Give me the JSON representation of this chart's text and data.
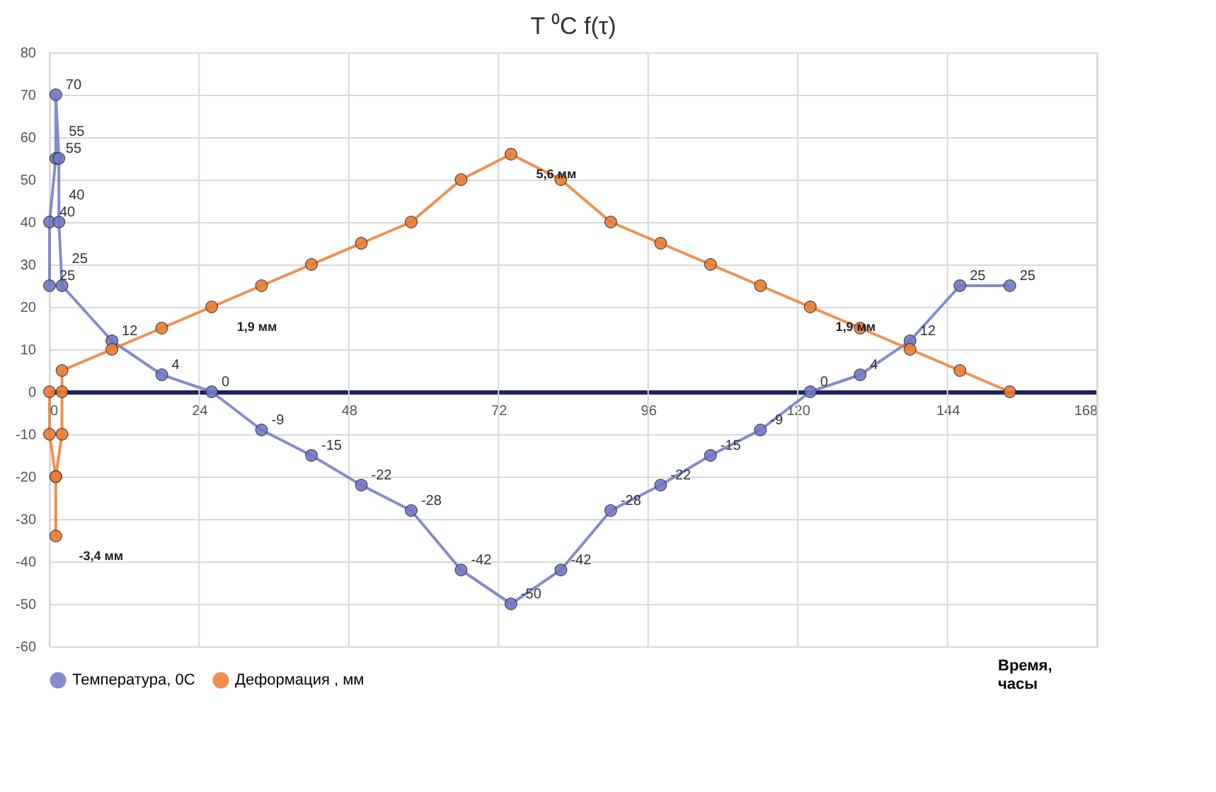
{
  "chart_data": {
    "type": "line",
    "title": "T ⁰C f(τ)",
    "xlabel": "Время, часы",
    "xlim": [
      0,
      168
    ],
    "xticks": [
      0,
      24,
      48,
      72,
      96,
      120,
      144,
      168
    ],
    "ylim": [
      -60,
      80
    ],
    "yticks": [
      -60,
      -50,
      -40,
      -30,
      -20,
      -10,
      0,
      10,
      20,
      30,
      40,
      50,
      60,
      70,
      80
    ],
    "grid": true,
    "legend": "bottom",
    "marker": "circle",
    "line_style": "solid",
    "series": [
      {
        "name": "Температура, 0С",
        "color": "#6f78c6",
        "data_labels": true,
        "x": [
          0,
          0,
          1,
          1,
          1.5,
          1.5,
          2,
          10,
          18,
          26,
          34,
          42,
          50,
          58,
          66,
          74,
          82,
          90,
          98,
          106,
          114,
          122,
          130,
          138,
          146,
          154
        ],
        "values": [
          25,
          40,
          55,
          70,
          55,
          40,
          25,
          12,
          4,
          0,
          -9,
          -15,
          -22,
          -28,
          -42,
          -50,
          -42,
          -28,
          -22,
          -15,
          -9,
          0,
          4,
          12,
          25,
          25
        ]
      },
      {
        "name": "Деформация , мм",
        "color": "#ed7d31",
        "x": [
          0,
          0,
          1,
          1,
          1,
          2,
          2,
          2,
          10,
          18,
          26,
          34,
          42,
          50,
          58,
          66,
          74,
          82,
          90,
          98,
          106,
          114,
          122,
          130,
          138,
          146,
          154
        ],
        "values": [
          0,
          -10,
          -20,
          -34,
          -20,
          -10,
          0,
          5,
          10,
          15,
          20,
          25,
          30,
          35,
          40,
          50,
          56,
          50,
          40,
          35,
          30,
          25,
          20,
          15,
          10,
          5,
          0
        ]
      }
    ],
    "annotations": [
      {
        "text": "5,6 мм",
        "x": 74,
        "y": 56
      },
      {
        "text": "1,9 мм",
        "x": 26,
        "y": 20
      },
      {
        "text": "1,9 мм",
        "x": 122,
        "y": 20
      },
      {
        "text": "-3,4 мм",
        "x": 1,
        "y": -34
      }
    ]
  }
}
